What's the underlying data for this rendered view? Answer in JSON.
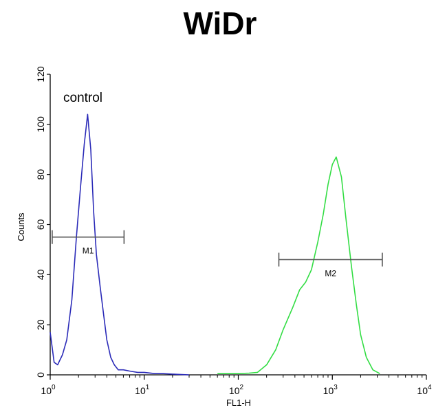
{
  "chart_data": {
    "type": "line",
    "title": "WiDr",
    "xlabel": "FL1-H",
    "ylabel": "Counts",
    "x_scale": "log",
    "xlim": [
      1,
      10000
    ],
    "ylim": [
      0,
      120
    ],
    "x_ticks": [
      {
        "value": 1,
        "base": "10",
        "exp": "0"
      },
      {
        "value": 10,
        "base": "10",
        "exp": "1"
      },
      {
        "value": 100,
        "base": "10",
        "exp": "2"
      },
      {
        "value": 1000,
        "base": "10",
        "exp": "3"
      },
      {
        "value": 10000,
        "base": "10",
        "exp": "4"
      }
    ],
    "y_ticks": [
      "0",
      "20",
      "40",
      "60",
      "80",
      "100",
      "120"
    ],
    "grid": false,
    "annotation": "control",
    "series": [
      {
        "color": "#2b2bb8",
        "x": [
          1.0,
          1.1,
          1.2,
          1.35,
          1.5,
          1.7,
          1.9,
          2.1,
          2.3,
          2.5,
          2.7,
          2.9,
          3.1,
          3.4,
          3.7,
          4.0,
          4.4,
          4.8,
          5.3,
          6.0,
          7.0,
          8.5,
          10,
          13,
          16,
          20,
          30
        ],
        "y": [
          17,
          5,
          4,
          8,
          14,
          30,
          55,
          75,
          92,
          104,
          90,
          65,
          48,
          35,
          24,
          14,
          7,
          4,
          2,
          2,
          1.5,
          1,
          1,
          0.5,
          0.5,
          0.3,
          0
        ]
      },
      {
        "color": "#33dd44",
        "x": [
          60,
          80,
          100,
          130,
          160,
          200,
          250,
          300,
          380,
          450,
          520,
          600,
          700,
          800,
          900,
          1000,
          1100,
          1250,
          1400,
          1600,
          1800,
          2000,
          2300,
          2700,
          3200
        ],
        "y": [
          0.5,
          0.5,
          0.5,
          0.7,
          1,
          4,
          10,
          18,
          27,
          34,
          37,
          42,
          53,
          64,
          76,
          84,
          87,
          79,
          62,
          43,
          28,
          16,
          7,
          2,
          0.5
        ]
      }
    ],
    "markers": [
      {
        "label": "M1",
        "x_start": 1.05,
        "x_end": 6.1,
        "y": 55,
        "color": "#555555"
      },
      {
        "label": "M2",
        "x_start": 270,
        "x_end": 3400,
        "y": 46,
        "color": "#555555"
      }
    ]
  }
}
